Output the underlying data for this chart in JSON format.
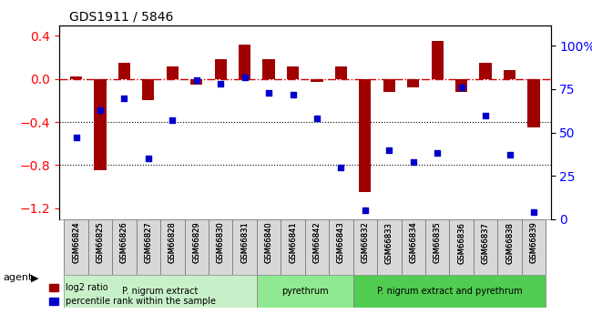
{
  "title": "GDS1911 / 5846",
  "samples": [
    "GSM66824",
    "GSM66825",
    "GSM66826",
    "GSM66827",
    "GSM66828",
    "GSM66829",
    "GSM66830",
    "GSM66831",
    "GSM66840",
    "GSM66841",
    "GSM66842",
    "GSM66843",
    "GSM66832",
    "GSM66833",
    "GSM66834",
    "GSM66835",
    "GSM66836",
    "GSM66837",
    "GSM66838",
    "GSM66839"
  ],
  "log2_ratio": [
    0.02,
    -0.85,
    0.15,
    -0.2,
    0.12,
    -0.05,
    0.18,
    0.32,
    0.18,
    0.12,
    -0.03,
    0.12,
    -1.05,
    -0.12,
    -0.08,
    0.35,
    -0.12,
    0.15,
    0.08,
    -0.45
  ],
  "pct_rank": [
    47,
    63,
    70,
    35,
    57,
    80,
    78,
    82,
    73,
    72,
    58,
    30,
    5,
    40,
    33,
    38,
    76,
    60,
    37,
    4
  ],
  "groups": [
    {
      "label": "P. nigrum extract",
      "start": 0,
      "end": 8,
      "color": "#c8f0c8"
    },
    {
      "label": "pyrethrum",
      "start": 8,
      "end": 12,
      "color": "#90e890"
    },
    {
      "label": "P. nigrum extract and pyrethrum",
      "start": 12,
      "end": 20,
      "color": "#50cc50"
    }
  ],
  "ylim_left": [
    -1.3,
    0.5
  ],
  "ylim_right": [
    0,
    112
  ],
  "yticks_left": [
    0.4,
    0.0,
    -0.4,
    -0.8,
    -1.2
  ],
  "yticks_right": [
    0,
    25,
    50,
    75,
    100
  ],
  "bar_color": "#a00000",
  "dot_color": "#0000cc",
  "hline_color": "#cc0000",
  "dotline_color": "#000000",
  "bar_width": 0.5
}
